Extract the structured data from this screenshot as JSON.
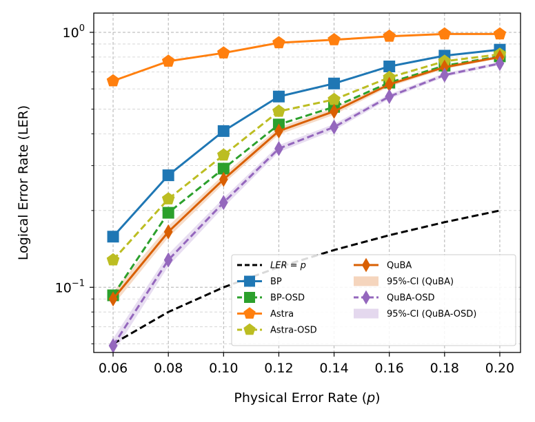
{
  "chart_data": {
    "type": "line",
    "title": "",
    "xlabel_prefix": "Physical Error Rate (",
    "xlabel_var": "p",
    "xlabel_suffix": ")",
    "ylabel": "Logical Error Rate (LER)",
    "x": [
      0.06,
      0.08,
      0.1,
      0.12,
      0.14,
      0.16,
      0.18,
      0.2
    ],
    "x_tick_labels": [
      "0.06",
      "0.08",
      "0.10",
      "0.12",
      "0.14",
      "0.16",
      "0.18",
      "0.20"
    ],
    "xlim": [
      0.053,
      0.2075
    ],
    "yscale": "log",
    "ylim": [
      0.0555,
      1.19
    ],
    "y_tick_labels": [
      {
        "base": "10",
        "exp": "0",
        "value": 1.0
      },
      {
        "base": "10",
        "exp": "−1",
        "value": 0.1
      }
    ],
    "grid": true,
    "legend_position": "lower-right",
    "series": [
      {
        "name": "LER = p",
        "legend_label": "LER = p",
        "color": "#000000",
        "style": "dashed",
        "marker": "none",
        "values": [
          0.06,
          0.08,
          0.1,
          0.12,
          0.14,
          0.16,
          0.18,
          0.2
        ]
      },
      {
        "name": "BP",
        "legend_label": "BP",
        "color": "#1f77b4",
        "style": "solid",
        "marker": "square",
        "values": [
          0.158,
          0.275,
          0.41,
          0.56,
          0.63,
          0.735,
          0.81,
          0.855
        ]
      },
      {
        "name": "BP-OSD",
        "legend_label": "BP-OSD",
        "color": "#2ca02c",
        "style": "dashed",
        "marker": "square",
        "values": [
          0.093,
          0.196,
          0.292,
          0.435,
          0.51,
          0.635,
          0.74,
          0.805
        ]
      },
      {
        "name": "Astra",
        "legend_label": "Astra",
        "color": "#ff7f0e",
        "style": "solid",
        "marker": "pentagon",
        "values": [
          0.645,
          0.77,
          0.83,
          0.91,
          0.935,
          0.965,
          0.985,
          0.985
        ]
      },
      {
        "name": "Astra-OSD",
        "legend_label": "Astra-OSD",
        "color": "#bcbd22",
        "style": "dashed",
        "marker": "pentagon",
        "values": [
          0.128,
          0.222,
          0.33,
          0.49,
          0.545,
          0.665,
          0.77,
          0.82
        ]
      },
      {
        "name": "QuBA",
        "legend_label": "QuBA",
        "color": "#d95f02",
        "style": "solid",
        "marker": "diamond",
        "values": [
          0.09,
          0.165,
          0.265,
          0.41,
          0.49,
          0.625,
          0.73,
          0.8
        ]
      },
      {
        "name": "QuBA-OSD",
        "legend_label": "QuBA-OSD",
        "color": "#9467bd",
        "style": "dashed",
        "marker": "diamond",
        "values": [
          0.059,
          0.128,
          0.215,
          0.35,
          0.425,
          0.56,
          0.68,
          0.755
        ]
      }
    ],
    "confidence_bands": [
      {
        "name": "95%-CI (QuBA)",
        "legend_label": "95%-CI (QuBA)",
        "color": "#f5d5bd",
        "lower": [
          0.085,
          0.157,
          0.255,
          0.397,
          0.475,
          0.612,
          0.718,
          0.79
        ],
        "upper": [
          0.096,
          0.174,
          0.276,
          0.424,
          0.505,
          0.638,
          0.742,
          0.81
        ]
      },
      {
        "name": "95%-CI (QuBA-OSD)",
        "legend_label": "95%-CI (QuBA-OSD)",
        "color": "#e4d8ee",
        "lower": [
          0.055,
          0.121,
          0.206,
          0.339,
          0.413,
          0.548,
          0.668,
          0.744
        ],
        "upper": [
          0.063,
          0.135,
          0.224,
          0.361,
          0.437,
          0.572,
          0.692,
          0.766
        ]
      }
    ],
    "legend_items_col1": [
      "LER = p",
      "BP",
      "BP-OSD",
      "Astra",
      "Astra-OSD"
    ],
    "legend_items_col2": [
      "QuBA",
      "95%-CI (QuBA)",
      "QuBA-OSD",
      "95%-CI (QuBA-OSD)"
    ]
  }
}
